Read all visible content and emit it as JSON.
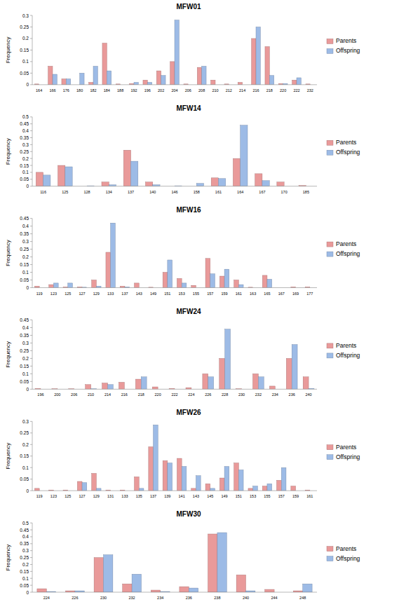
{
  "chart_data": [
    {
      "type": "bar",
      "title": "MFW01",
      "y_label": "Frequency",
      "categories": [
        "164",
        "166",
        "176",
        "180",
        "182",
        "184",
        "188",
        "192",
        "196",
        "202",
        "204",
        "206",
        "208",
        "210",
        "212",
        "214",
        "216",
        "218",
        "220",
        "222",
        "232"
      ],
      "series": [
        {
          "name": "Parents",
          "color": "#e99a9a",
          "values": [
            0.003,
            0.08,
            0.025,
            0,
            0.01,
            0.18,
            0.003,
            0.005,
            0.02,
            0.06,
            0.1,
            0.003,
            0.075,
            0.02,
            0.003,
            0.01,
            0.2,
            0.165,
            0.005,
            0.02,
            0.003
          ]
        },
        {
          "name": "Offspring",
          "color": "#9dbbe6",
          "values": [
            0,
            0.045,
            0.025,
            0.05,
            0.08,
            0.06,
            0,
            0.01,
            0.01,
            0.04,
            0.28,
            0,
            0.08,
            0,
            0,
            0,
            0.25,
            0.04,
            0.005,
            0.03,
            0
          ]
        }
      ],
      "ylim": [
        0,
        0.3
      ],
      "yticks": [
        0,
        0.05,
        0.1,
        0.15,
        0.2,
        0.25,
        0.3
      ],
      "grid": false,
      "legend": "right"
    },
    {
      "type": "bar",
      "title": "MFW14",
      "y_label": "Frequency",
      "categories": [
        "116",
        "125",
        "128",
        "134",
        "137",
        "140",
        "146",
        "158",
        "161",
        "164",
        "167",
        "170",
        "185"
      ],
      "series": [
        {
          "name": "Parents",
          "color": "#e99a9a",
          "values": [
            0.1,
            0.15,
            0,
            0.03,
            0.26,
            0.03,
            0,
            0,
            0.06,
            0.2,
            0.09,
            0.03,
            0.005
          ]
        },
        {
          "name": "Offspring",
          "color": "#9dbbe6",
          "values": [
            0.08,
            0.14,
            0.003,
            0.01,
            0.18,
            0.01,
            0.003,
            0.02,
            0.055,
            0.44,
            0.04,
            0,
            0
          ]
        }
      ],
      "ylim": [
        0,
        0.5
      ],
      "yticks": [
        0,
        0.05,
        0.1,
        0.15,
        0.2,
        0.25,
        0.3,
        0.35,
        0.4,
        0.45,
        0.5
      ],
      "grid": false,
      "legend": "right"
    },
    {
      "type": "bar",
      "title": "MFW16",
      "y_label": "Frequency",
      "categories": [
        "119",
        "123",
        "125",
        "127",
        "129",
        "133",
        "137",
        "143",
        "149",
        "151",
        "153",
        "155",
        "157",
        "159",
        "161",
        "163",
        "165",
        "167",
        "169",
        "177"
      ],
      "series": [
        {
          "name": "Parents",
          "color": "#e99a9a",
          "values": [
            0.01,
            0.02,
            0.005,
            0.005,
            0.05,
            0.23,
            0.01,
            0.03,
            0.003,
            0.1,
            0.06,
            0.015,
            0.19,
            0.075,
            0.05,
            0.003,
            0.08,
            0,
            0.005,
            0.005
          ]
        },
        {
          "name": "Offspring",
          "color": "#9dbbe6",
          "values": [
            0,
            0.03,
            0.03,
            0.003,
            0.01,
            0.42,
            0.005,
            0,
            0,
            0.18,
            0.03,
            0,
            0.09,
            0.12,
            0.02,
            0,
            0.055,
            0,
            0,
            0
          ]
        }
      ],
      "ylim": [
        0,
        0.45
      ],
      "yticks": [
        0,
        0.05,
        0.1,
        0.15,
        0.2,
        0.25,
        0.3,
        0.35,
        0.4,
        0.45
      ],
      "grid": false,
      "legend": "right"
    },
    {
      "type": "bar",
      "title": "MFW24",
      "y_label": "Frequency",
      "categories": [
        "196",
        "200",
        "206",
        "210",
        "214",
        "216",
        "218",
        "220",
        "222",
        "224",
        "226",
        "228",
        "230",
        "232",
        "234",
        "236",
        "240"
      ],
      "series": [
        {
          "name": "Parents",
          "color": "#e99a9a",
          "values": [
            0.005,
            0.003,
            0.003,
            0.03,
            0.04,
            0.045,
            0.065,
            0.015,
            0.005,
            0.01,
            0.1,
            0.2,
            0.003,
            0.1,
            0.02,
            0.2,
            0.08
          ]
        },
        {
          "name": "Offspring",
          "color": "#9dbbe6",
          "values": [
            0,
            0,
            0,
            0.003,
            0.03,
            0,
            0.08,
            0,
            0,
            0,
            0.08,
            0.39,
            0,
            0.08,
            0,
            0.29,
            0.005
          ]
        }
      ],
      "ylim": [
        0,
        0.45
      ],
      "yticks": [
        0,
        0.05,
        0.1,
        0.15,
        0.2,
        0.25,
        0.3,
        0.35,
        0.4,
        0.45
      ],
      "grid": false,
      "legend": "right"
    },
    {
      "type": "bar",
      "title": "MFW26",
      "y_label": "Frequency",
      "categories": [
        "119",
        "123",
        "125",
        "127",
        "129",
        "131",
        "133",
        "135",
        "137",
        "139",
        "141",
        "143",
        "145",
        "149",
        "151",
        "153",
        "155",
        "157",
        "159",
        "161"
      ],
      "series": [
        {
          "name": "Parents",
          "color": "#e99a9a",
          "values": [
            0.01,
            0.003,
            0.003,
            0.04,
            0.075,
            0.003,
            0.003,
            0.06,
            0.19,
            0.13,
            0.14,
            0.01,
            0.03,
            0.055,
            0.12,
            0.01,
            0.02,
            0.045,
            0.02,
            0.003
          ]
        },
        {
          "name": "Offspring",
          "color": "#9dbbe6",
          "values": [
            0,
            0,
            0,
            0.035,
            0.01,
            0,
            0,
            0.01,
            0.285,
            0.12,
            0.105,
            0.065,
            0.01,
            0.105,
            0.09,
            0.02,
            0.03,
            0.1,
            0,
            0
          ]
        }
      ],
      "ylim": [
        0,
        0.3
      ],
      "yticks": [
        0,
        0.05,
        0.1,
        0.15,
        0.2,
        0.25,
        0.3
      ],
      "grid": false,
      "legend": "right"
    },
    {
      "type": "bar",
      "title": "MFW30",
      "y_label": "Frequency",
      "categories": [
        "224",
        "226",
        "230",
        "232",
        "234",
        "236",
        "238",
        "240",
        "244",
        "248"
      ],
      "series": [
        {
          "name": "Parents",
          "color": "#e99a9a",
          "values": [
            0.025,
            0.01,
            0.25,
            0.06,
            0.015,
            0.04,
            0.42,
            0.125,
            0.02,
            0.01
          ]
        },
        {
          "name": "Offspring",
          "color": "#9dbbe6",
          "values": [
            0.005,
            0.01,
            0.27,
            0.13,
            0.005,
            0.03,
            0.43,
            0.01,
            0,
            0.06
          ]
        }
      ],
      "ylim": [
        0,
        0.5
      ],
      "yticks": [
        0,
        0.05,
        0.1,
        0.15,
        0.2,
        0.25,
        0.3,
        0.35,
        0.4,
        0.45,
        0.5
      ],
      "grid": false,
      "legend": "right"
    }
  ]
}
